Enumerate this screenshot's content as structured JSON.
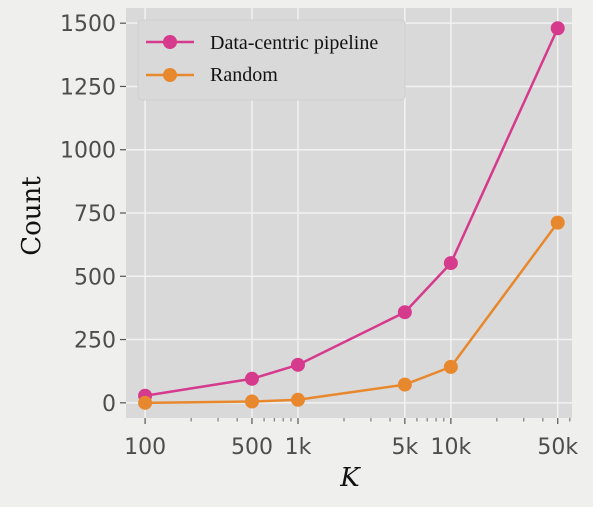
{
  "chart_data": {
    "type": "line",
    "x_scale": "log",
    "x": [
      100,
      500,
      1000,
      5000,
      10000,
      50000
    ],
    "x_tick_labels": [
      "100",
      "500",
      "1k",
      "5k",
      "10k",
      "50k"
    ],
    "xlabel": "K",
    "ylabel": "Count",
    "ylim": [
      -60,
      1560
    ],
    "y_ticks": [
      0,
      250,
      500,
      750,
      1000,
      1250,
      1500
    ],
    "y_tick_labels": [
      "0",
      "250",
      "500",
      "750",
      "1000",
      "1250",
      "1500"
    ],
    "grid": true,
    "legend_position": "top-left",
    "series": [
      {
        "name": "Data-centric pipeline",
        "color": "#d63a8d",
        "values": [
          28,
          95,
          150,
          358,
          552,
          1480
        ]
      },
      {
        "name": "Random",
        "color": "#e8882e",
        "values": [
          0,
          5,
          12,
          72,
          142,
          712
        ]
      }
    ]
  }
}
